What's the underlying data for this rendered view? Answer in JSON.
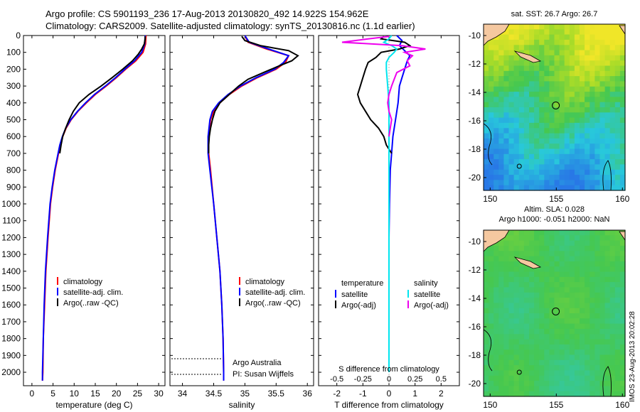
{
  "header": {
    "line1": "Argo profile: CS 5901193_236 17-Aug-2013 20130820_492 14.922S 154.962E",
    "line2": "Climatology: CARS2009. Satellite-adjusted climatology: synTS_20130816.nc (1.1d earlier)"
  },
  "stamp": "IMOS 23-Aug-2013 20:02:28",
  "depth_ticks": [
    0,
    100,
    200,
    300,
    400,
    500,
    600,
    700,
    800,
    900,
    1000,
    1100,
    1200,
    1300,
    1400,
    1500,
    1600,
    1700,
    1800,
    1900,
    2000
  ],
  "colors": {
    "climatology": "#ff0000",
    "satellite": "#0000ff",
    "argo": "#000000",
    "salinity_sat": "#00e5ee",
    "salinity_argo": "#ee00ee"
  },
  "chart_data": [
    {
      "id": "temperature",
      "type": "line",
      "xlabel": "temperature (deg C)",
      "xticks": [
        0,
        5,
        10,
        15,
        20,
        25,
        30
      ],
      "xlim": [
        -2,
        31.5
      ],
      "ylim": [
        2080,
        0
      ],
      "ylabel": "",
      "legend": [
        "climatology",
        "satellite-adj. clim.",
        "Argo(..raw -QC)"
      ],
      "series": [
        {
          "name": "climatology",
          "y": [
            0,
            50,
            100,
            150,
            200,
            250,
            300,
            350,
            400,
            450,
            500,
            550,
            600,
            650,
            700,
            800,
            900,
            1000,
            1200,
            1400,
            1600,
            1800,
            2000,
            2050
          ],
          "x": [
            27.0,
            26.9,
            26.3,
            24.6,
            22.2,
            20.0,
            17.6,
            15.0,
            12.9,
            10.9,
            9.3,
            8.1,
            7.3,
            6.7,
            6.3,
            5.5,
            4.9,
            4.4,
            3.8,
            3.3,
            3.0,
            2.7,
            2.6,
            2.5
          ]
        },
        {
          "name": "satellite-adj. clim.",
          "y": [
            0,
            50,
            100,
            150,
            200,
            250,
            300,
            350,
            400,
            450,
            500,
            550,
            600,
            650,
            700,
            800,
            900,
            1000,
            1200,
            1400,
            1600,
            1800,
            2000,
            2050
          ],
          "x": [
            26.8,
            26.7,
            26.0,
            24.3,
            22.0,
            19.8,
            17.4,
            14.8,
            12.7,
            10.8,
            9.2,
            8.0,
            7.2,
            6.6,
            6.2,
            5.4,
            4.8,
            4.3,
            3.7,
            3.2,
            2.9,
            2.7,
            2.5,
            2.5
          ]
        },
        {
          "name": "Argo(..raw -QC)",
          "y": [
            5,
            20,
            50,
            80,
            110,
            150,
            200,
            250,
            300,
            350,
            400,
            450,
            500,
            550,
            600,
            650,
            700
          ],
          "x": [
            26.8,
            26.8,
            26.6,
            26.0,
            25.2,
            23.8,
            21.5,
            19.0,
            16.4,
            13.5,
            11.2,
            9.8,
            8.8,
            8.0,
            7.3,
            6.9,
            6.6
          ]
        }
      ]
    },
    {
      "id": "salinity",
      "type": "line",
      "xlabel": "salinity",
      "xticks": [
        34,
        34.5,
        35,
        35.5,
        36
      ],
      "xlim": [
        33.8,
        36.1
      ],
      "ylim": [
        2080,
        0
      ],
      "ylabel": "",
      "legend": [
        "climatology",
        "satellite-adj. clim.",
        "Argo(..raw -QC)"
      ],
      "annotation": [
        "Argo Australia",
        "PI: Susan Wijffels"
      ],
      "series": [
        {
          "name": "climatology",
          "y": [
            0,
            40,
            80,
            120,
            160,
            200,
            250,
            300,
            350,
            400,
            450,
            500,
            600,
            700,
            800,
            1000,
            1200,
            1400,
            1600,
            1800,
            2000,
            2050
          ],
          "x": [
            35.0,
            35.05,
            35.35,
            35.7,
            35.65,
            35.5,
            35.2,
            34.95,
            34.75,
            34.6,
            34.5,
            34.45,
            34.42,
            34.42,
            34.45,
            34.5,
            34.55,
            34.6,
            34.63,
            34.65,
            34.66,
            34.66
          ]
        },
        {
          "name": "satellite-adj. clim.",
          "y": [
            0,
            40,
            80,
            120,
            160,
            200,
            250,
            300,
            350,
            400,
            450,
            500,
            600,
            700,
            800,
            1000,
            1200,
            1400,
            1600,
            1800,
            2000,
            2050
          ],
          "x": [
            35.0,
            35.07,
            35.38,
            35.7,
            35.62,
            35.48,
            35.18,
            34.93,
            34.73,
            34.58,
            34.48,
            34.44,
            34.41,
            34.41,
            34.44,
            34.5,
            34.55,
            34.6,
            34.63,
            34.65,
            34.66,
            34.66
          ]
        },
        {
          "name": "Argo(..raw -QC)",
          "y": [
            5,
            30,
            60,
            90,
            120,
            150,
            180,
            220,
            260,
            300,
            350,
            400,
            450,
            500,
            550,
            600,
            650,
            700
          ],
          "x": [
            34.95,
            35.0,
            35.25,
            35.7,
            35.85,
            35.75,
            35.55,
            35.3,
            35.05,
            34.9,
            34.75,
            34.6,
            34.52,
            34.48,
            34.45,
            34.43,
            34.42,
            34.42
          ]
        }
      ]
    },
    {
      "id": "difference",
      "type": "line",
      "xlabel": "T difference from climatology",
      "x2label": "S difference from climatology",
      "xticks": [
        -2,
        -1,
        0,
        1,
        2
      ],
      "x2ticks": [
        "-0.5",
        "-0.25",
        "0",
        "0.25",
        "0.5"
      ],
      "xlim": [
        -2.7,
        2.7
      ],
      "ylim": [
        2080,
        0
      ],
      "ylabel": "",
      "legend_titles": [
        "temperature",
        "salinity"
      ],
      "legend": [
        "satellite",
        "Argo(-adj)",
        "satellite",
        "Argo(-adj)"
      ],
      "series": [
        {
          "name": "satellite",
          "quantity": "temperature",
          "y": [
            0,
            30,
            60,
            90,
            120,
            150,
            200,
            250,
            300,
            400,
            500,
            600,
            700,
            800,
            1000,
            1200,
            1500,
            2000
          ],
          "x": [
            0.3,
            0.5,
            0.4,
            0.6,
            0.8,
            0.7,
            0.6,
            0.5,
            0.4,
            0.35,
            0.25,
            0.15,
            0.1,
            0.05,
            0.02,
            0.0,
            0.0,
            0.0
          ]
        },
        {
          "name": "Argo(-adj)",
          "quantity": "temperature",
          "y": [
            5,
            20,
            40,
            60,
            80,
            100,
            130,
            160,
            200,
            250,
            300,
            350,
            400,
            450,
            500,
            550,
            600,
            650,
            700
          ],
          "x": [
            -0.2,
            -0.3,
            0.6,
            0.8,
            0.4,
            -0.3,
            -0.5,
            -0.8,
            -0.9,
            -1.0,
            -1.1,
            -1.2,
            -1.1,
            -0.9,
            -0.7,
            -0.4,
            -0.2,
            -0.1,
            0.1
          ]
        },
        {
          "name": "satellite",
          "quantity": "salinity",
          "y": [
            0,
            20,
            40,
            60,
            80,
            100,
            130,
            160,
            200,
            300,
            400,
            600,
            800,
            1000,
            1500,
            2000
          ],
          "x": [
            0.1,
            0.0,
            -0.2,
            0.1,
            0.3,
            0.2,
            0.0,
            -0.1,
            -0.1,
            -0.05,
            0.0,
            0.0,
            0.0,
            0.0,
            0.0,
            0.0
          ]
        },
        {
          "name": "Argo(-adj)",
          "quantity": "salinity",
          "y": [
            5,
            20,
            40,
            60,
            80,
            100,
            120,
            150,
            180,
            220,
            260,
            300,
            350,
            400,
            450,
            500,
            550,
            600
          ],
          "x": [
            0.0,
            -0.8,
            -1.8,
            0.5,
            1.4,
            0.6,
            0.9,
            0.7,
            0.8,
            0.3,
            0.2,
            0.1,
            0.0,
            -0.05,
            0.0,
            0.1,
            0.05,
            0.0
          ]
        }
      ]
    },
    {
      "id": "sst-map",
      "type": "heatmap",
      "title": "sat. SST: 26.7 Argo: 26.7",
      "xticks": [
        150,
        155,
        160
      ],
      "yticks": [
        -10,
        -12,
        -14,
        -16,
        -18,
        -20
      ],
      "xlim": [
        149.5,
        160.2
      ],
      "ylim": [
        -20.9,
        -9.2
      ],
      "marker": {
        "lon": 154.962,
        "lat": -14.922
      },
      "marker2": {
        "lon": 152.2,
        "lat": -19.2
      }
    },
    {
      "id": "sla-map",
      "type": "heatmap",
      "title": "Altim. SLA: 0.028",
      "subtitle": "Argo h1000: -0.051 h2000: NaN",
      "xticks": [
        150,
        155,
        160
      ],
      "yticks": [
        -10,
        -12,
        -14,
        -16,
        -18,
        -20
      ],
      "xlim": [
        149.5,
        160.2
      ],
      "ylim": [
        -20.9,
        -9.2
      ],
      "marker": {
        "lon": 154.962,
        "lat": -14.922
      },
      "marker2": {
        "lon": 152.2,
        "lat": -19.2
      }
    }
  ]
}
